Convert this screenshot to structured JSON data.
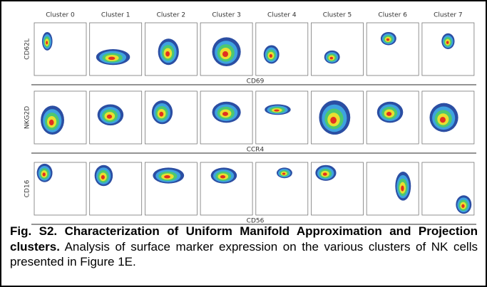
{
  "clusters": [
    "Cluster 0",
    "Cluster 1",
    "Cluster 2",
    "Cluster 3",
    "Cluster 4",
    "Cluster 5",
    "Cluster 6",
    "Cluster 7"
  ],
  "rows": [
    {
      "y_label": "CD62L",
      "x_label": "CD69"
    },
    {
      "y_label": "NKG2D",
      "x_label": "CCR4"
    },
    {
      "y_label": "CD16",
      "x_label": "CD56"
    }
  ],
  "caption": {
    "label": "Fig. S2.",
    "title": "Characterization of Uniform Manifold Approximation and Projection clusters.",
    "body": "Analysis of surface marker expression on the various clusters of NK cells presented in Figure 1E."
  }
}
